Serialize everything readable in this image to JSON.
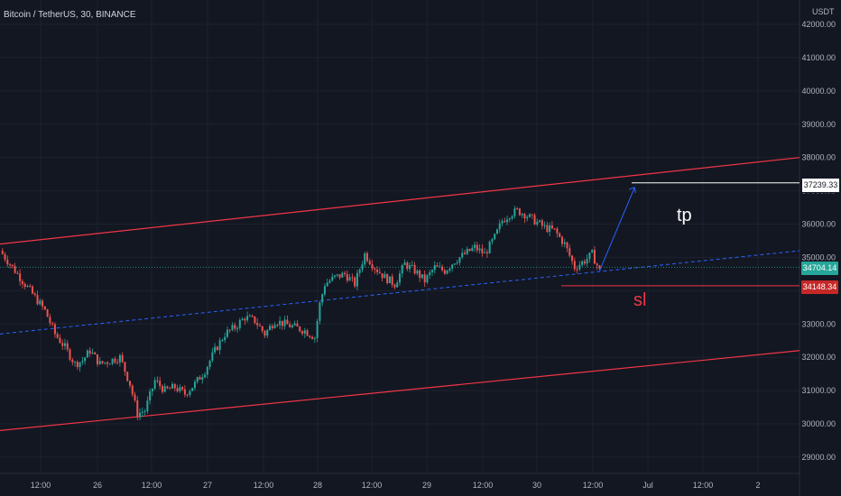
{
  "header": {
    "title": "Bitcoin / TetherUS, 30, BINANCE"
  },
  "price_axis": {
    "currency": "USDT",
    "labels": [
      "42000.00",
      "41000.00",
      "40000.00",
      "39000.00",
      "38000.00",
      "37000.00",
      "36000.00",
      "35000.00",
      "33000.00",
      "32000.00",
      "31000.00",
      "30000.00",
      "29000.00"
    ]
  },
  "time_axis": {
    "labels": [
      "12:00",
      "26",
      "12:00",
      "27",
      "12:00",
      "28",
      "12:00",
      "29",
      "12:00",
      "30",
      "12:00",
      "Jul",
      "12:00",
      "2"
    ]
  },
  "annotations": {
    "tp_label": "tp",
    "sl_label": "sl",
    "tp_price": "37239.33",
    "sl_price": "34148.34",
    "current_price": "34704.14"
  },
  "colors": {
    "background": "#131722",
    "up": "#26a69a",
    "down": "#ef5350",
    "channel": "#f23645",
    "trend": "#2962ff",
    "axis_text": "#b2b5be",
    "grid": "#1e222d"
  },
  "chart_data": {
    "type": "candlestick",
    "symbol": "BTCUSDT",
    "interval": "30",
    "exchange": "BINANCE",
    "ylim": [
      28600,
      42400
    ],
    "close_series": [
      [
        0,
        35200
      ],
      [
        6,
        34600
      ],
      [
        12,
        34000
      ],
      [
        18,
        33400
      ],
      [
        22,
        32700
      ],
      [
        26,
        32300
      ],
      [
        30,
        31800
      ],
      [
        33,
        31900
      ],
      [
        36,
        32200
      ],
      [
        40,
        31800
      ],
      [
        44,
        31900
      ],
      [
        48,
        32000
      ],
      [
        52,
        31200
      ],
      [
        55,
        30300
      ],
      [
        58,
        30400
      ],
      [
        62,
        31300
      ],
      [
        66,
        31000
      ],
      [
        70,
        31100
      ],
      [
        74,
        30900
      ],
      [
        78,
        31200
      ],
      [
        82,
        31600
      ],
      [
        86,
        32200
      ],
      [
        90,
        32700
      ],
      [
        94,
        32900
      ],
      [
        98,
        33200
      ],
      [
        102,
        33100
      ],
      [
        106,
        32700
      ],
      [
        110,
        33100
      ],
      [
        114,
        33000
      ],
      [
        118,
        32900
      ],
      [
        122,
        32800
      ],
      [
        126,
        32600
      ],
      [
        128,
        33600
      ],
      [
        130,
        34200
      ],
      [
        134,
        34400
      ],
      [
        138,
        34500
      ],
      [
        142,
        34200
      ],
      [
        146,
        35100
      ],
      [
        150,
        34700
      ],
      [
        154,
        34400
      ],
      [
        158,
        34200
      ],
      [
        162,
        34800
      ],
      [
        166,
        34600
      ],
      [
        170,
        34300
      ],
      [
        174,
        34700
      ],
      [
        178,
        34600
      ],
      [
        182,
        34900
      ],
      [
        186,
        35100
      ],
      [
        190,
        35300
      ],
      [
        194,
        35100
      ],
      [
        198,
        35600
      ],
      [
        201,
        36100
      ],
      [
        204,
        36300
      ],
      [
        207,
        36400
      ],
      [
        210,
        36300
      ],
      [
        214,
        36100
      ],
      [
        218,
        35900
      ],
      [
        222,
        35800
      ],
      [
        226,
        35400
      ],
      [
        230,
        34700
      ],
      [
        234,
        34900
      ],
      [
        237,
        35100
      ],
      [
        240,
        34600
      ]
    ],
    "channel_upper": [
      [
        0,
        35400
      ],
      [
        320,
        38000
      ]
    ],
    "channel_lower": [
      [
        0,
        29800
      ],
      [
        320,
        32200
      ]
    ],
    "trend_support": [
      [
        0,
        32700
      ],
      [
        320,
        35200
      ]
    ],
    "tp_level": 37239.33,
    "sl_level": 34148.34,
    "current_price": 34704.14,
    "projection": [
      [
        240,
        34600
      ],
      [
        254,
        37100
      ]
    ]
  }
}
